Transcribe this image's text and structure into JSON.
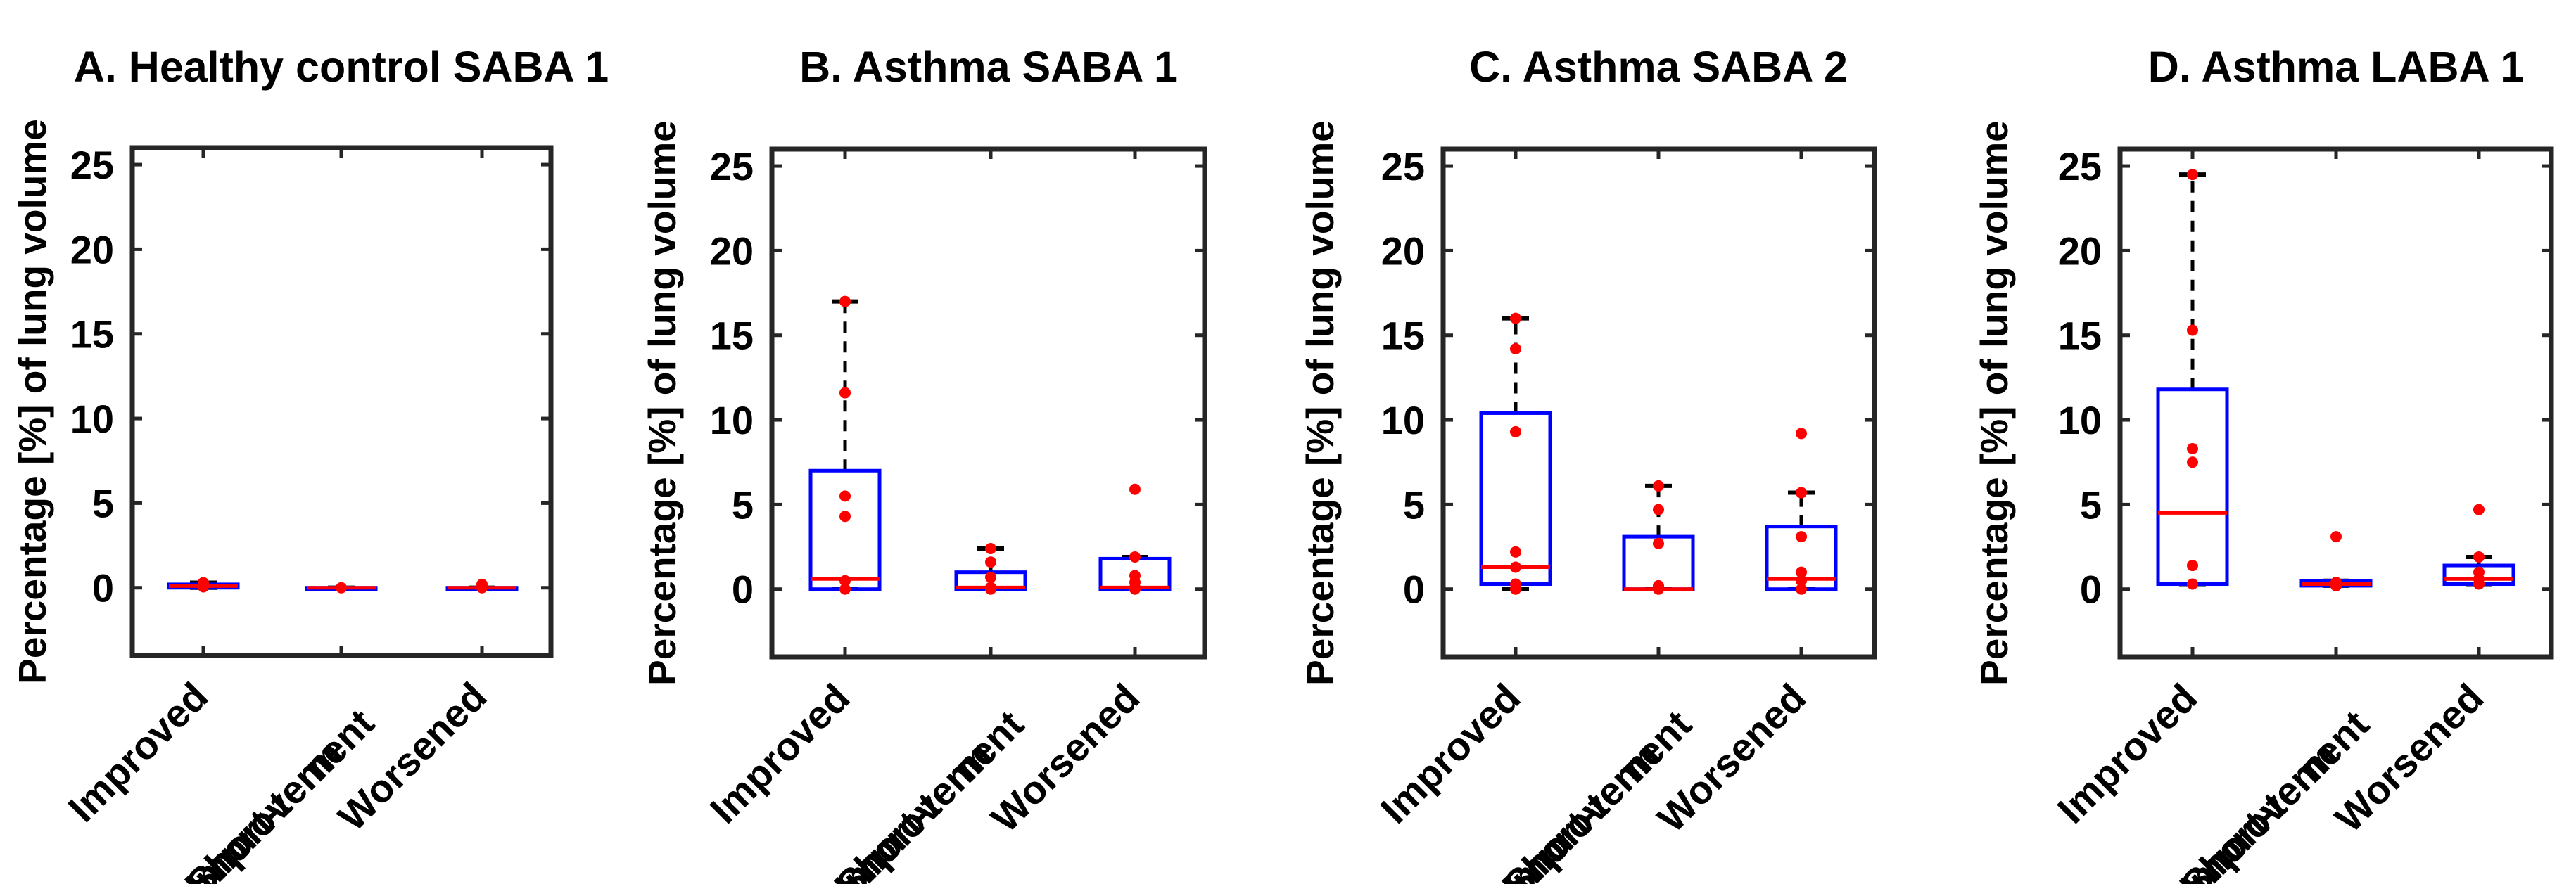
{
  "colors": {
    "box": "#0000ff",
    "median": "#ff0000",
    "points": "#ff0000",
    "whisker": "#000000",
    "axes": "#262626"
  },
  "chart_data": [
    {
      "type": "box",
      "title": "A.  Healthy control SABA 1",
      "ylabel": "Percentage [%] of lung volume",
      "xlabel": "",
      "ylim": [
        -4,
        26
      ],
      "yticks": [
        "0",
        "5",
        "10",
        "15",
        "20",
        "25"
      ],
      "grid": false,
      "categories": [
        {
          "label": [
            "Improved"
          ],
          "q1": 0.0,
          "median": 0.1,
          "q3": 0.2,
          "whisker_low": 0.0,
          "whisker_high": 0.3,
          "points": [
            0.05,
            0.15,
            0.3
          ]
        },
        {
          "label": [
            "Short-term",
            "Improvement"
          ],
          "q1": 0.0,
          "median": 0.0,
          "q3": 0.0,
          "whisker_low": 0.0,
          "whisker_high": 0.0,
          "points": [
            0.0
          ]
        },
        {
          "label": [
            "Worsened"
          ],
          "q1": 0.0,
          "median": 0.0,
          "q3": 0.0,
          "whisker_low": 0.0,
          "whisker_high": 0.0,
          "points": [
            0.0,
            0.2
          ]
        }
      ]
    },
    {
      "type": "box",
      "title": "B. Asthma SABA 1",
      "ylabel": "Percentage [%] of lung volume",
      "xlabel": "",
      "ylim": [
        -4,
        26
      ],
      "yticks": [
        "0",
        "5",
        "10",
        "15",
        "20",
        "25"
      ],
      "grid": false,
      "categories": [
        {
          "label": [
            "Improved"
          ],
          "q1": 0.0,
          "median": 0.6,
          "q3": 7.0,
          "whisker_low": 0.0,
          "whisker_high": 17.0,
          "points": [
            0.0,
            0.5,
            4.3,
            5.5,
            11.6,
            17.0
          ]
        },
        {
          "label": [
            "Short-term",
            "Improvement"
          ],
          "q1": 0.0,
          "median": 0.1,
          "q3": 1.0,
          "whisker_low": 0.0,
          "whisker_high": 2.4,
          "points": [
            0.0,
            0.1,
            0.7,
            1.6,
            2.4
          ]
        },
        {
          "label": [
            "Worsened"
          ],
          "q1": 0.0,
          "median": 0.1,
          "q3": 1.8,
          "whisker_low": 0.0,
          "whisker_high": 1.9,
          "points": [
            0.0,
            0.1,
            0.4,
            0.8,
            1.9,
            5.9
          ]
        }
      ]
    },
    {
      "type": "box",
      "title": "C. Asthma  SABA 2",
      "ylabel": "Percentage [%] of lung volume",
      "xlabel": "",
      "ylim": [
        -4,
        26
      ],
      "yticks": [
        "0",
        "5",
        "10",
        "15",
        "20",
        "25"
      ],
      "grid": false,
      "categories": [
        {
          "label": [
            "Improved"
          ],
          "q1": 0.3,
          "median": 1.3,
          "q3": 10.4,
          "whisker_low": 0.0,
          "whisker_high": 16.0,
          "points": [
            0.0,
            0.3,
            1.3,
            2.2,
            9.3,
            14.2,
            16.0
          ]
        },
        {
          "label": [
            "Short-term",
            "Improvement"
          ],
          "q1": 0.0,
          "median": 0.0,
          "q3": 3.1,
          "whisker_low": 0.0,
          "whisker_high": 6.1,
          "points": [
            0.0,
            0.2,
            2.7,
            4.7,
            6.1
          ]
        },
        {
          "label": [
            "Worsened"
          ],
          "q1": 0.0,
          "median": 0.6,
          "q3": 3.7,
          "whisker_low": 0.0,
          "whisker_high": 5.7,
          "points": [
            0.0,
            0.5,
            1.0,
            3.1,
            5.7,
            9.2
          ]
        }
      ]
    },
    {
      "type": "box",
      "title": "D. Asthma  LABA 1",
      "ylabel": "Percentage [%] of lung volume",
      "xlabel": "",
      "ylim": [
        -4,
        26
      ],
      "yticks": [
        "0",
        "5",
        "10",
        "15",
        "20",
        "25"
      ],
      "grid": false,
      "categories": [
        {
          "label": [
            "Improved"
          ],
          "q1": 0.3,
          "median": 4.5,
          "q3": 11.8,
          "whisker_low": 0.3,
          "whisker_high": 24.5,
          "points": [
            0.3,
            1.4,
            7.5,
            8.3,
            15.3,
            24.5
          ]
        },
        {
          "label": [
            "Short-term",
            "Improvement"
          ],
          "q1": 0.2,
          "median": 0.3,
          "q3": 0.5,
          "whisker_low": 0.2,
          "whisker_high": 0.5,
          "points": [
            0.2,
            0.4,
            3.1
          ]
        },
        {
          "label": [
            "Worsened"
          ],
          "q1": 0.3,
          "median": 0.6,
          "q3": 1.4,
          "whisker_low": 0.3,
          "whisker_high": 1.9,
          "points": [
            0.3,
            0.6,
            1.0,
            1.9,
            4.7
          ]
        }
      ]
    }
  ]
}
